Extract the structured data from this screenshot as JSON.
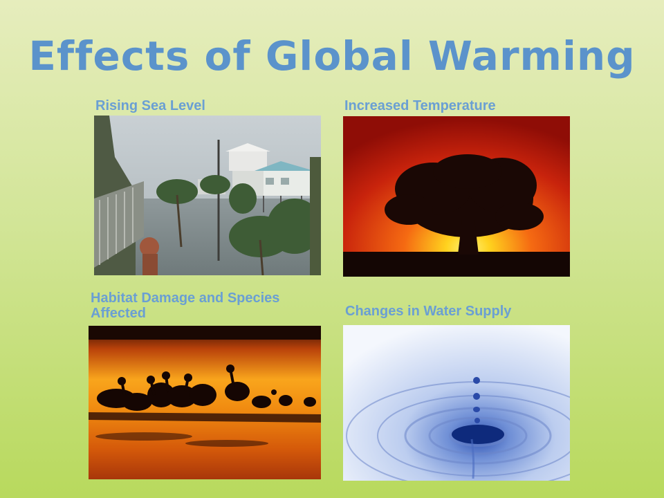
{
  "slide": {
    "title": "Effects of Global Warming",
    "panels": [
      {
        "caption": "Rising Sea Level",
        "image": "flooded-coastal-street-photo"
      },
      {
        "caption": "Increased Temperature",
        "image": "tree-silhouette-sunset-photo"
      },
      {
        "caption": "Habitat Damage and Species Affected",
        "image": "pelicans-silhouette-sunset-photo"
      },
      {
        "caption": "Changes in Water Supply",
        "image": "water-drop-ripple-photo"
      }
    ]
  },
  "colors": {
    "title": "#5b93cb",
    "caption": "#6a9fd3",
    "background_top": "#e6edbd",
    "background_bottom": "#b8d95d"
  }
}
